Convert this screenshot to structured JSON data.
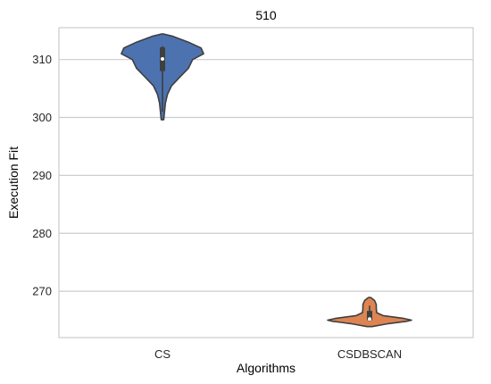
{
  "chart_data": {
    "type": "violin",
    "title": "510",
    "xlabel": "Algorithms",
    "ylabel": "Execution Fit",
    "categories": [
      "CS",
      "CSDBSCAN"
    ],
    "ylim": [
      262.0,
      315.5
    ],
    "yticks": [
      270,
      280,
      290,
      300,
      310
    ],
    "grid": "horizontal",
    "colors": {
      "CS": "#4c72b0",
      "CSDBSCAN": "#dd8452"
    },
    "series": [
      {
        "category": "CS",
        "min": 299.6,
        "max": 314.4,
        "q1": 308.0,
        "median": 310.1,
        "q3": 312.1,
        "whisker_low": 301.0,
        "whisker_high": 312.3,
        "density": [
          [
            299.6,
            0.03
          ],
          [
            301.0,
            0.05
          ],
          [
            302.5,
            0.07
          ],
          [
            304.0,
            0.12
          ],
          [
            305.5,
            0.22
          ],
          [
            307.0,
            0.42
          ],
          [
            308.5,
            0.62
          ],
          [
            310.0,
            0.72
          ],
          [
            311.0,
            0.98
          ],
          [
            312.0,
            0.92
          ],
          [
            313.0,
            0.62
          ],
          [
            314.0,
            0.25
          ],
          [
            314.4,
            0.03
          ]
        ]
      },
      {
        "category": "CSDBSCAN",
        "min": 263.9,
        "max": 268.9,
        "q1": 265.0,
        "median": 265.2,
        "q3": 266.6,
        "whisker_low": 264.8,
        "whisker_high": 267.5,
        "density": [
          [
            263.9,
            0.06
          ],
          [
            264.4,
            0.45
          ],
          [
            264.8,
            0.88
          ],
          [
            265.0,
            1.0
          ],
          [
            265.3,
            0.82
          ],
          [
            265.8,
            0.32
          ],
          [
            266.3,
            0.17
          ],
          [
            267.0,
            0.16
          ],
          [
            267.7,
            0.16
          ],
          [
            268.4,
            0.12
          ],
          [
            268.9,
            0.03
          ]
        ]
      }
    ]
  }
}
